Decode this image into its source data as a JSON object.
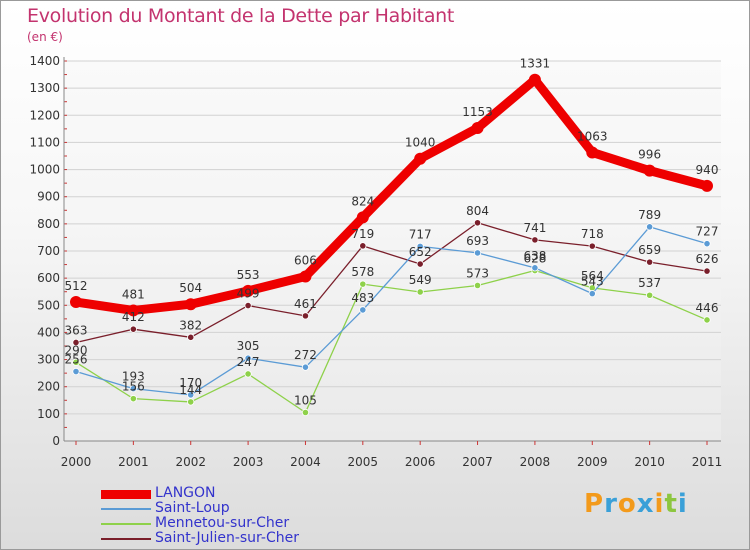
{
  "chart_data": {
    "type": "line",
    "title": "Evolution du Montant de la Dette par Habitant",
    "ylabel": "(en €)",
    "xlabel": "",
    "ylim": [
      0,
      1400
    ],
    "yticks": [
      0,
      100,
      200,
      300,
      400,
      500,
      600,
      700,
      800,
      900,
      1000,
      1100,
      1200,
      1300,
      1400
    ],
    "categories": [
      "2000",
      "2001",
      "2002",
      "2003",
      "2004",
      "2005",
      "2006",
      "2007",
      "2008",
      "2009",
      "2010",
      "2011"
    ],
    "grid": "horizontal",
    "series": [
      {
        "name": "LANGON",
        "color": "#ee0000",
        "width": "thick",
        "values": [
          512,
          481,
          504,
          553,
          606,
          824,
          1040,
          1153,
          1331,
          1063,
          996,
          940
        ]
      },
      {
        "name": "Saint-Loup",
        "color": "#5b9bd5",
        "width": "thin",
        "values": [
          256,
          193,
          170,
          305,
          272,
          483,
          717,
          693,
          638,
          543,
          789,
          727
        ]
      },
      {
        "name": "Mennetou-sur-Cher",
        "color": "#8ed14a",
        "width": "thin",
        "values": [
          290,
          156,
          144,
          247,
          105,
          578,
          549,
          573,
          628,
          564,
          537,
          446
        ]
      },
      {
        "name": "Saint-Julien-sur-Cher",
        "color": "#7a1f2b",
        "width": "thin",
        "values": [
          363,
          412,
          382,
          499,
          461,
          719,
          652,
          804,
          741,
          718,
          659,
          626
        ]
      }
    ]
  },
  "labels": {
    "0": [
      [
        "512"
      ],
      [
        "256",
        "193",
        "170",
        "305",
        "272",
        "483",
        "717",
        "693",
        "638",
        "543",
        "789",
        "727"
      ]
    ]
  },
  "logo": {
    "text": "Proxiti",
    "colors": [
      "#f39a1b",
      "#3aa0d8",
      "#f39a1b",
      "#3aa0d8",
      "#f39a1b",
      "#8cc63f",
      "#3aa0d8"
    ]
  }
}
